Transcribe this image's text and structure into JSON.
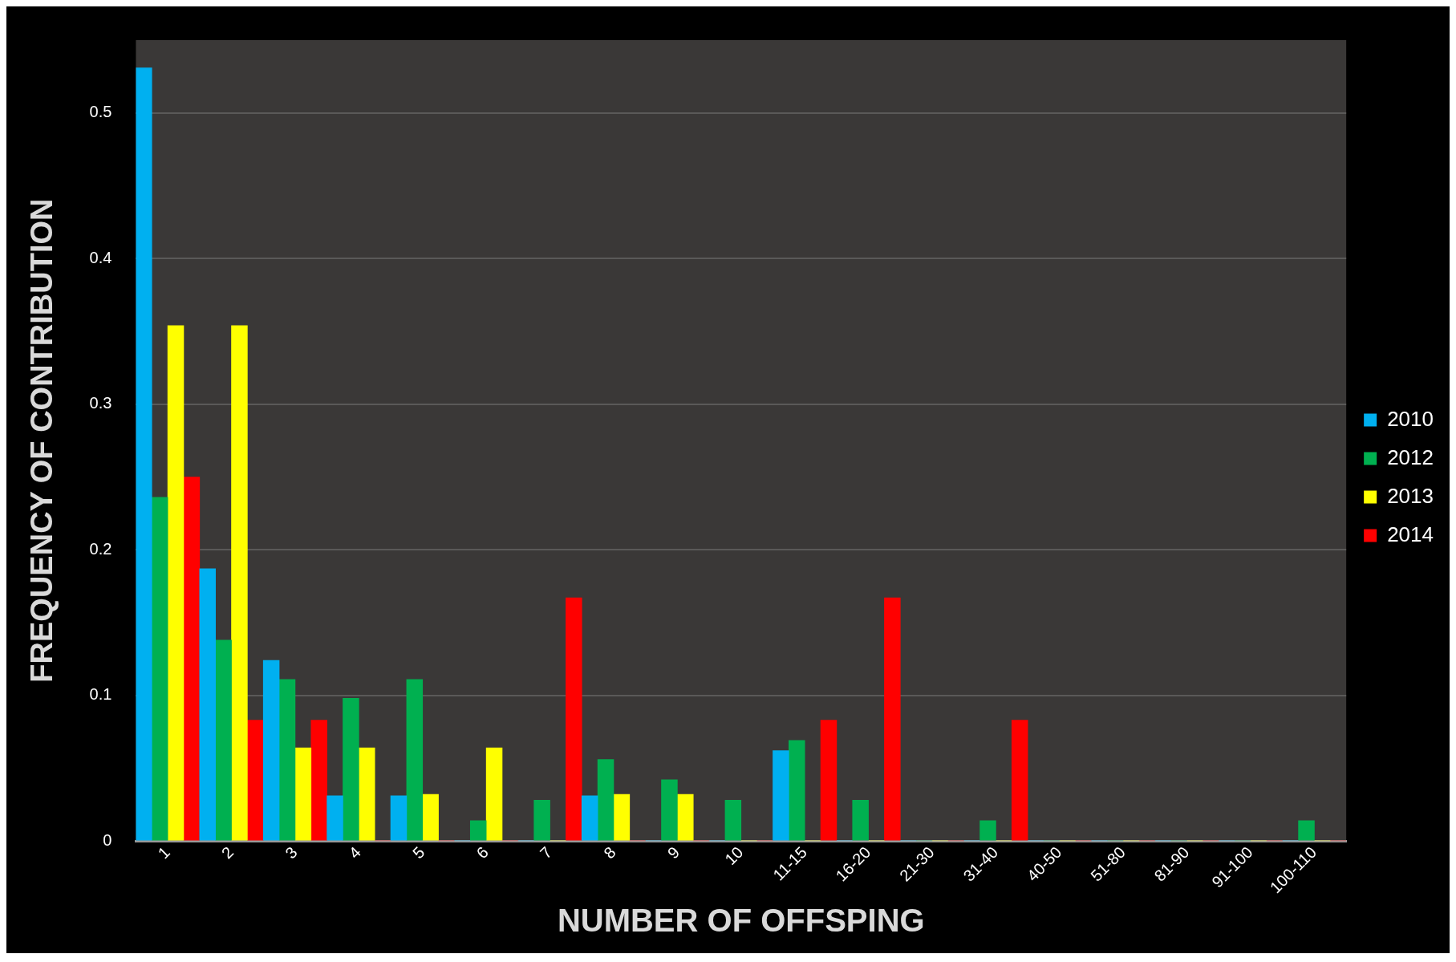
{
  "chart_data": {
    "type": "bar",
    "xlabel": "NUMBER OF OFFSPING",
    "ylabel": "FREQUENCY OF CONTRIBUTION",
    "categories": [
      "1",
      "2",
      "3",
      "4",
      "5",
      "6",
      "7",
      "8",
      "9",
      "10",
      "11-15",
      "16-20",
      "21-30",
      "31-40",
      "40-50",
      "51-80",
      "81-90",
      "91-100",
      "100-110"
    ],
    "series": [
      {
        "name": "2010",
        "color": "#00b0f0",
        "values": [
          0.531,
          0.187,
          0.124,
          0.031,
          0.031,
          0,
          0,
          0.031,
          0,
          0,
          0.062,
          0,
          0,
          0,
          0,
          0,
          0,
          0,
          0
        ]
      },
      {
        "name": "2012",
        "color": "#00b050",
        "values": [
          0.236,
          0.138,
          0.111,
          0.098,
          0.111,
          0.014,
          0.028,
          0.056,
          0.042,
          0.028,
          0.069,
          0.028,
          0,
          0.014,
          0,
          0,
          0,
          0,
          0.014
        ]
      },
      {
        "name": "2013",
        "color": "#ffff00",
        "values": [
          0.354,
          0.354,
          0.064,
          0.064,
          0.032,
          0.064,
          0,
          0.032,
          0.032,
          0,
          0,
          0,
          0,
          0,
          0,
          0,
          0,
          0,
          0
        ]
      },
      {
        "name": "2014",
        "color": "#ff0000",
        "values": [
          0.25,
          0.083,
          0.083,
          0,
          0,
          0,
          0.167,
          0,
          0,
          0,
          0.083,
          0.167,
          0,
          0.083,
          0,
          0,
          0,
          0,
          0
        ]
      }
    ],
    "ylim": [
      0,
      0.55
    ],
    "yticks": [
      0,
      0.1,
      0.2,
      0.3,
      0.4,
      0.5
    ],
    "grid": "y",
    "legend": "right"
  }
}
